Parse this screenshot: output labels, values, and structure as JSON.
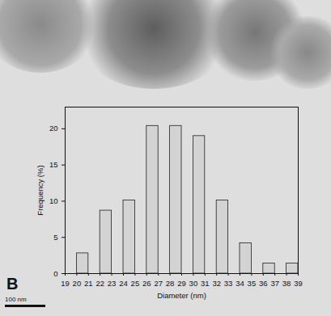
{
  "chart_data": {
    "type": "bar",
    "x_label": "Diameter (nm)",
    "y_label": "Frequency (%)",
    "x": [
      20.5,
      22.5,
      24.5,
      26.5,
      28.5,
      30.5,
      32.5,
      34.5,
      36.5,
      38.5
    ],
    "values": [
      2.8,
      8.7,
      10.1,
      20.4,
      20.4,
      19.0,
      10.1,
      4.2,
      1.4,
      1.4
    ],
    "color": "#d3d3d3",
    "xlim": [
      19,
      39
    ],
    "xticks": [
      19,
      20,
      21,
      22,
      23,
      24,
      25,
      26,
      27,
      28,
      29,
      30,
      31,
      32,
      33,
      34,
      35,
      36,
      37,
      38,
      39
    ],
    "ylim": [
      0,
      23
    ],
    "yticks": [
      0,
      5,
      10,
      15,
      20
    ],
    "grid": false,
    "annotations": [
      {
        "text": "B"
      },
      {
        "text": "100 nm"
      }
    ]
  }
}
